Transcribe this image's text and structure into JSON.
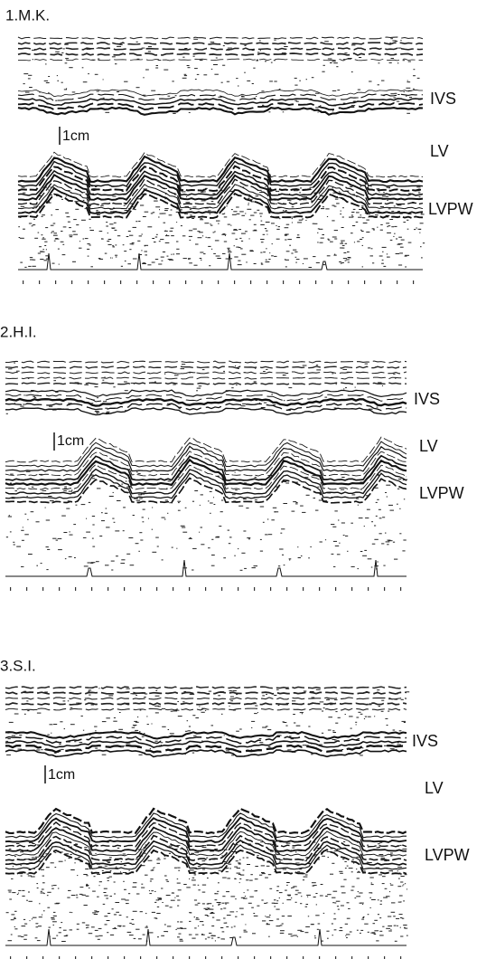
{
  "panels": [
    {
      "label": "1.M.K.",
      "scale": "1cm",
      "structures": [
        "IVS",
        "LV",
        "LVPW"
      ]
    },
    {
      "label": "2.H.I.",
      "scale": "1cm",
      "structures": [
        "IVS",
        "LV",
        "LVPW"
      ]
    },
    {
      "label": "3.S.I.",
      "scale": "1cm",
      "structures": [
        "IVS",
        "LV",
        "LVPW"
      ]
    }
  ]
}
